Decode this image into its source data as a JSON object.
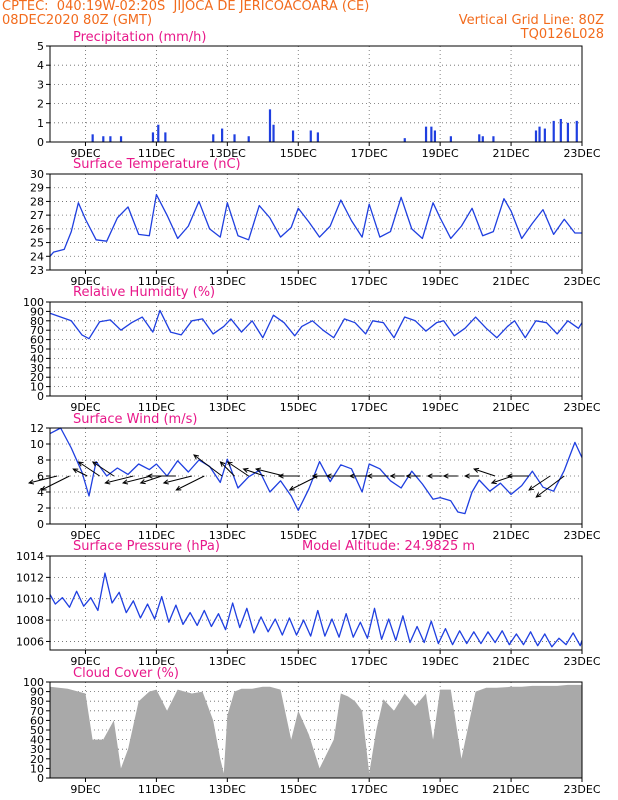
{
  "header": {
    "line1": "CPTEC:  040:19W-02:20S  JIJOCA DE JERICOACOARA (CE)",
    "line2_left": "08DEC2020 80Z (GMT)",
    "line2_right": "Vertical Grid Line: 80Z",
    "line3_right": "TQ0126L028"
  },
  "colors": {
    "header": "#f26b1d",
    "title": "#e8188a",
    "line": "#1f3fe0",
    "cloud": "#a9a9a9",
    "grid": "#666666"
  },
  "x_axis": {
    "range_days": [
      8.0,
      23.0
    ],
    "ticks": [
      {
        "day": 9,
        "label": "9DEC"
      },
      {
        "day": 11,
        "label": "11DEC"
      },
      {
        "day": 13,
        "label": "13DEC"
      },
      {
        "day": 15,
        "label": "15DEC"
      },
      {
        "day": 17,
        "label": "17DEC"
      },
      {
        "day": 19,
        "label": "19DEC"
      },
      {
        "day": 21,
        "label": "21DEC"
      },
      {
        "day": 23,
        "label": "23DEC"
      }
    ]
  },
  "chart_data": [
    {
      "type": "bar",
      "title": "Precipitation (mm/h)",
      "ylim": [
        0,
        5
      ],
      "yticks": [
        0,
        1,
        2,
        3,
        4,
        5
      ],
      "x": [
        9.2,
        9.5,
        9.7,
        10.0,
        10.9,
        11.05,
        11.25,
        12.6,
        12.85,
        13.2,
        13.6,
        14.2,
        14.3,
        14.85,
        15.35,
        15.55,
        18.0,
        18.6,
        18.75,
        18.85,
        19.3,
        20.1,
        20.2,
        20.5,
        21.7,
        21.8,
        21.95,
        22.2,
        22.4,
        22.6,
        22.85
      ],
      "values": [
        0.4,
        0.3,
        0.3,
        0.3,
        0.5,
        0.9,
        0.5,
        0.4,
        0.7,
        0.4,
        0.3,
        1.7,
        0.9,
        0.6,
        0.6,
        0.5,
        0.2,
        0.8,
        0.8,
        0.6,
        0.3,
        0.4,
        0.3,
        0.3,
        0.6,
        0.8,
        0.7,
        1.1,
        1.2,
        1.0,
        1.1
      ]
    },
    {
      "type": "line",
      "title": "Surface Temperature (nC)",
      "ylim": [
        23,
        30
      ],
      "yticks": [
        23,
        24,
        25,
        26,
        27,
        28,
        29,
        30
      ],
      "x": [
        8.0,
        8.1,
        8.4,
        8.6,
        8.8,
        9.0,
        9.3,
        9.6,
        9.9,
        10.2,
        10.5,
        10.8,
        11.0,
        11.3,
        11.6,
        11.9,
        12.2,
        12.5,
        12.8,
        13.0,
        13.3,
        13.6,
        13.9,
        14.2,
        14.5,
        14.8,
        15.0,
        15.3,
        15.6,
        15.9,
        16.2,
        16.5,
        16.8,
        17.0,
        17.3,
        17.6,
        17.9,
        18.2,
        18.5,
        18.8,
        19.0,
        19.3,
        19.6,
        19.9,
        20.2,
        20.5,
        20.8,
        21.0,
        21.3,
        21.6,
        21.9,
        22.2,
        22.5,
        22.8,
        23.0
      ],
      "values": [
        24.0,
        24.3,
        24.5,
        25.8,
        27.9,
        26.7,
        25.2,
        25.1,
        26.8,
        27.6,
        25.6,
        25.5,
        28.5,
        27.0,
        25.3,
        26.2,
        28.0,
        26.0,
        25.4,
        27.9,
        25.5,
        25.2,
        27.7,
        26.8,
        25.4,
        26.1,
        27.5,
        26.5,
        25.4,
        26.2,
        28.1,
        26.6,
        25.4,
        27.8,
        25.4,
        25.8,
        28.3,
        26.0,
        25.3,
        27.9,
        26.8,
        25.3,
        26.2,
        27.5,
        25.5,
        25.8,
        28.2,
        27.3,
        25.3,
        26.4,
        27.4,
        25.6,
        26.7,
        25.7,
        25.7
      ]
    },
    {
      "type": "line",
      "title": "Relative Humidity (%)",
      "ylim": [
        0,
        100
      ],
      "yticks": [
        0,
        10,
        20,
        30,
        40,
        50,
        60,
        70,
        80,
        90,
        100
      ],
      "x": [
        8.0,
        8.3,
        8.6,
        8.9,
        9.1,
        9.4,
        9.7,
        10.0,
        10.3,
        10.6,
        10.9,
        11.1,
        11.4,
        11.7,
        12.0,
        12.3,
        12.6,
        12.9,
        13.1,
        13.4,
        13.7,
        14.0,
        14.3,
        14.6,
        14.9,
        15.1,
        15.4,
        15.7,
        16.0,
        16.3,
        16.6,
        16.9,
        17.1,
        17.4,
        17.7,
        18.0,
        18.3,
        18.6,
        18.9,
        19.1,
        19.4,
        19.7,
        20.0,
        20.3,
        20.6,
        20.9,
        21.1,
        21.4,
        21.7,
        22.0,
        22.3,
        22.6,
        22.9,
        23.0
      ],
      "values": [
        88,
        84,
        80,
        65,
        61,
        79,
        81,
        70,
        78,
        84,
        68,
        91,
        68,
        65,
        80,
        82,
        66,
        74,
        82,
        68,
        80,
        62,
        86,
        78,
        64,
        74,
        80,
        70,
        62,
        82,
        78,
        66,
        80,
        78,
        62,
        84,
        80,
        69,
        78,
        80,
        64,
        72,
        84,
        72,
        62,
        74,
        80,
        62,
        80,
        78,
        66,
        80,
        72,
        78
      ]
    },
    {
      "type": "line",
      "title": "Surface Wind (m/s)",
      "ylim": [
        0,
        12
      ],
      "yticks": [
        0,
        2,
        4,
        6,
        8,
        10,
        12
      ],
      "x": [
        8.0,
        8.3,
        8.6,
        8.9,
        9.1,
        9.3,
        9.6,
        9.9,
        10.2,
        10.5,
        10.8,
        11.0,
        11.3,
        11.6,
        11.9,
        12.2,
        12.5,
        12.8,
        13.0,
        13.3,
        13.6,
        13.9,
        14.2,
        14.5,
        14.8,
        15.0,
        15.3,
        15.6,
        15.9,
        16.2,
        16.5,
        16.8,
        17.0,
        17.3,
        17.6,
        17.9,
        18.2,
        18.5,
        18.8,
        19.0,
        19.3,
        19.5,
        19.7,
        19.9,
        20.1,
        20.4,
        20.7,
        21.0,
        21.3,
        21.6,
        21.9,
        22.2,
        22.5,
        22.8,
        23.0
      ],
      "values": [
        11.3,
        12.0,
        9.5,
        6.5,
        3.5,
        7.8,
        6.0,
        7.0,
        6.2,
        7.5,
        6.8,
        7.5,
        6.0,
        7.9,
        6.5,
        8.0,
        7.2,
        5.2,
        8.1,
        4.5,
        5.9,
        6.7,
        4.0,
        5.4,
        3.5,
        1.7,
        4.4,
        7.8,
        5.3,
        7.4,
        6.9,
        4.0,
        7.5,
        6.9,
        5.4,
        4.5,
        6.6,
        5.0,
        3.1,
        3.3,
        2.9,
        1.5,
        1.3,
        4.0,
        5.5,
        4.1,
        5.1,
        3.7,
        4.8,
        6.6,
        4.6,
        4.1,
        6.7,
        10.2,
        8.3
      ],
      "wind_vectors": [
        {
          "day": 8.2,
          "u": -4,
          "v": -1
        },
        {
          "day": 8.55,
          "u": -4,
          "v": -2
        },
        {
          "day": 9.05,
          "u": -2,
          "v": 1
        },
        {
          "day": 9.4,
          "u": -3,
          "v": 2
        },
        {
          "day": 9.8,
          "u": -3,
          "v": 2
        },
        {
          "day": 10.35,
          "u": -4,
          "v": -1
        },
        {
          "day": 10.85,
          "u": -4,
          "v": -1
        },
        {
          "day": 11.15,
          "u": -3,
          "v": -1
        },
        {
          "day": 11.55,
          "u": -4,
          "v": 0
        },
        {
          "day": 12.0,
          "u": -4,
          "v": -1
        },
        {
          "day": 12.35,
          "u": -4,
          "v": -2
        },
        {
          "day": 12.85,
          "u": -4,
          "v": 3
        },
        {
          "day": 13.2,
          "u": -2,
          "v": 2
        },
        {
          "day": 13.6,
          "u": -3,
          "v": 2
        },
        {
          "day": 14.05,
          "u": -3,
          "v": 1
        },
        {
          "day": 14.6,
          "u": -4,
          "v": 1
        },
        {
          "day": 15.05,
          "u": -3,
          "v": 0
        },
        {
          "day": 15.55,
          "u": -4,
          "v": -2
        },
        {
          "day": 16.0,
          "u": -3,
          "v": 0
        },
        {
          "day": 16.6,
          "u": -4,
          "v": 0
        },
        {
          "day": 17.05,
          "u": -3,
          "v": 0
        },
        {
          "day": 17.55,
          "u": -3,
          "v": 0
        },
        {
          "day": 18.0,
          "u": -2,
          "v": 0
        },
        {
          "day": 18.45,
          "u": -2,
          "v": 0
        },
        {
          "day": 19.05,
          "u": -2,
          "v": 0
        },
        {
          "day": 19.5,
          "u": -2,
          "v": 0
        },
        {
          "day": 20.1,
          "u": -2,
          "v": 0
        },
        {
          "day": 20.55,
          "u": -3,
          "v": 1
        },
        {
          "day": 21.05,
          "u": -3,
          "v": -1
        },
        {
          "day": 21.5,
          "u": -3,
          "v": 0
        },
        {
          "day": 22.1,
          "u": -3,
          "v": -2
        },
        {
          "day": 22.5,
          "u": -4,
          "v": -3
        }
      ]
    },
    {
      "type": "line",
      "title": "Surface Pressure (hPa)",
      "annotation": "Model Altitude: 24.9825 m",
      "ylim": [
        1005.2,
        1014
      ],
      "yticks": [
        1006,
        1008,
        1010,
        1012,
        1014
      ],
      "x": [
        8.0,
        8.15,
        8.35,
        8.55,
        8.75,
        8.95,
        9.15,
        9.35,
        9.55,
        9.75,
        9.95,
        10.15,
        10.35,
        10.55,
        10.75,
        10.95,
        11.15,
        11.35,
        11.55,
        11.75,
        11.95,
        12.15,
        12.35,
        12.55,
        12.75,
        12.95,
        13.15,
        13.35,
        13.55,
        13.75,
        13.95,
        14.15,
        14.35,
        14.55,
        14.75,
        14.95,
        15.15,
        15.35,
        15.55,
        15.75,
        15.95,
        16.15,
        16.35,
        16.55,
        16.75,
        16.95,
        17.15,
        17.35,
        17.55,
        17.75,
        17.95,
        18.15,
        18.35,
        18.55,
        18.75,
        18.95,
        19.15,
        19.35,
        19.55,
        19.75,
        19.95,
        20.15,
        20.35,
        20.55,
        20.75,
        20.95,
        21.15,
        21.35,
        21.55,
        21.75,
        21.95,
        22.15,
        22.35,
        22.55,
        22.75,
        22.95,
        23.0
      ],
      "values": [
        1010.4,
        1009.5,
        1010.1,
        1009.2,
        1010.7,
        1009.3,
        1010.1,
        1008.9,
        1012.4,
        1009.6,
        1010.6,
        1008.7,
        1009.8,
        1008.2,
        1009.5,
        1008.1,
        1010.2,
        1007.8,
        1009.4,
        1007.6,
        1008.7,
        1007.5,
        1008.9,
        1007.4,
        1008.6,
        1007.1,
        1009.6,
        1007.3,
        1009.1,
        1006.8,
        1008.3,
        1006.9,
        1008.1,
        1006.6,
        1008.2,
        1006.6,
        1008.0,
        1006.5,
        1008.9,
        1006.5,
        1008.1,
        1006.4,
        1008.6,
        1006.4,
        1007.8,
        1006.3,
        1009.1,
        1006.2,
        1008.1,
        1006.1,
        1008.4,
        1005.9,
        1007.4,
        1005.9,
        1007.9,
        1005.8,
        1007.2,
        1005.7,
        1007.0,
        1005.8,
        1006.9,
        1005.8,
        1006.9,
        1005.9,
        1007.0,
        1005.7,
        1006.7,
        1005.7,
        1006.9,
        1005.6,
        1006.7,
        1005.5,
        1006.3,
        1005.7,
        1006.8,
        1005.6,
        1006.1
      ]
    },
    {
      "type": "area",
      "title": "Cloud Cover (%)",
      "ylim": [
        0,
        100
      ],
      "yticks": [
        0,
        10,
        20,
        30,
        40,
        50,
        60,
        70,
        80,
        90,
        100
      ],
      "x": [
        8.0,
        8.5,
        9.0,
        9.2,
        9.5,
        9.8,
        10.0,
        10.2,
        10.5,
        10.8,
        11.0,
        11.3,
        11.6,
        12.0,
        12.3,
        12.6,
        12.8,
        12.9,
        13.0,
        13.2,
        13.4,
        13.7,
        14.0,
        14.2,
        14.5,
        14.8,
        15.0,
        15.3,
        15.6,
        16.0,
        16.2,
        16.4,
        16.6,
        16.8,
        17.0,
        17.2,
        17.4,
        17.7,
        18.0,
        18.3,
        18.6,
        18.8,
        19.0,
        19.3,
        19.6,
        20.0,
        20.3,
        20.6,
        21.0,
        21.3,
        21.6,
        22.0,
        22.3,
        22.6,
        23.0
      ],
      "values": [
        95,
        93,
        88,
        40,
        40,
        60,
        10,
        30,
        80,
        90,
        92,
        70,
        92,
        88,
        90,
        60,
        20,
        5,
        65,
        90,
        93,
        93,
        95,
        95,
        92,
        40,
        70,
        45,
        10,
        40,
        88,
        85,
        80,
        70,
        5,
        50,
        82,
        70,
        88,
        75,
        88,
        40,
        92,
        92,
        20,
        90,
        94,
        94,
        95,
        95,
        96,
        96,
        96,
        97,
        97
      ]
    }
  ]
}
